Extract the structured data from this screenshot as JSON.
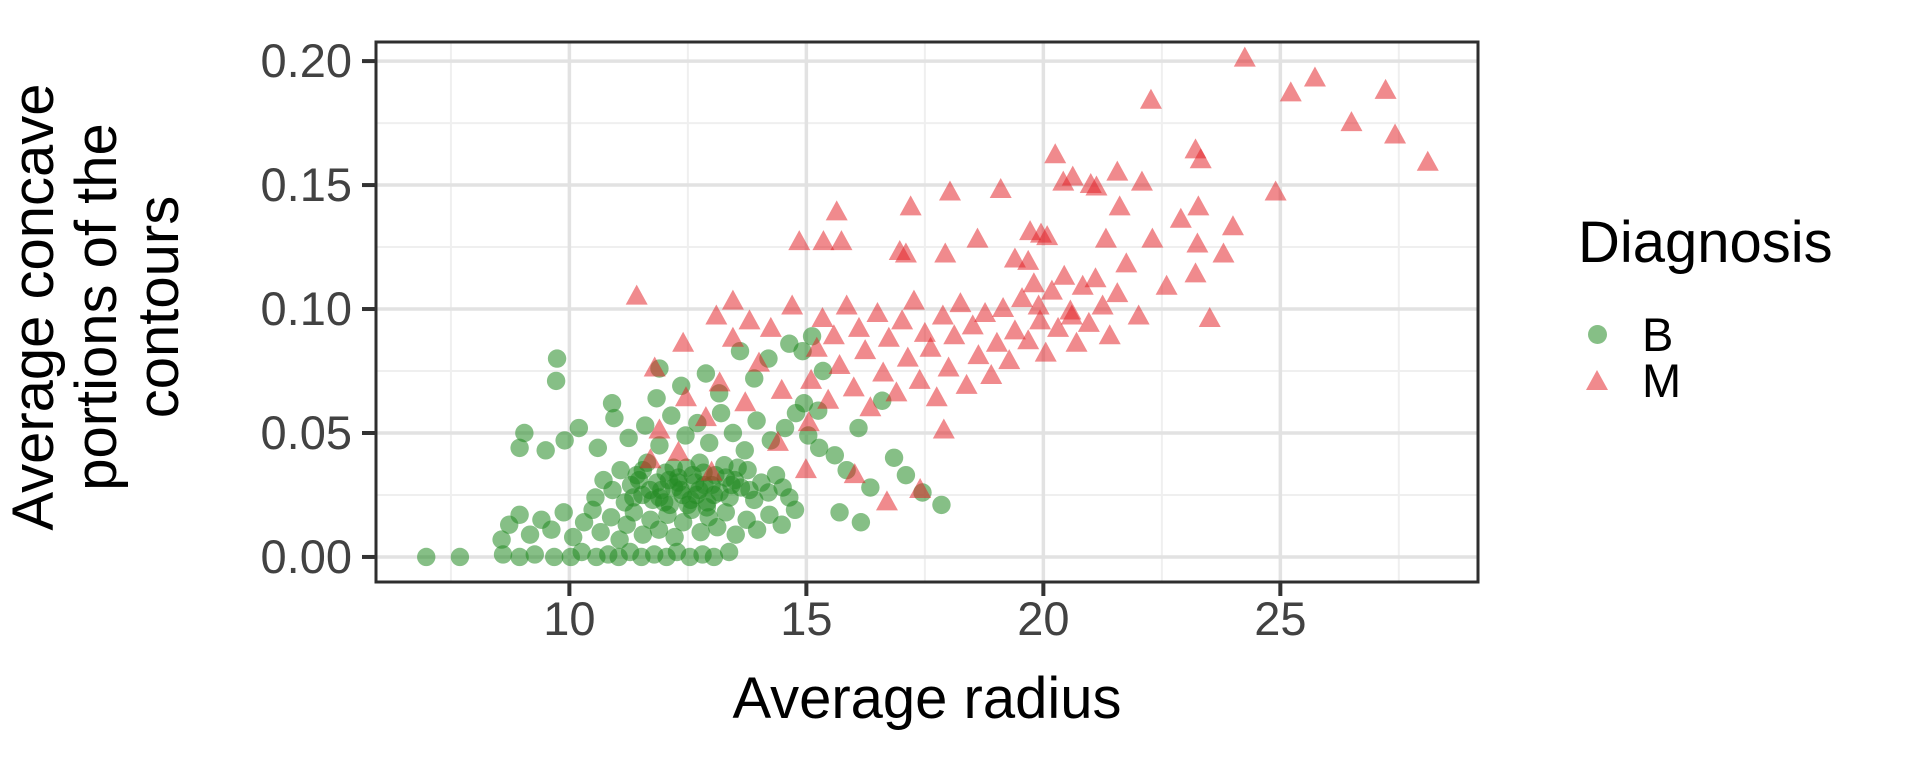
{
  "axes": {
    "x_title": "Average radius",
    "y_title": "Average concave\nportions of the\ncontours"
  },
  "legend": {
    "title": "Diagnosis",
    "items": [
      {
        "label": "B",
        "marker": "circle"
      },
      {
        "label": "M",
        "marker": "triangle"
      }
    ]
  },
  "chart_data": {
    "type": "scatter",
    "title": "",
    "xlabel": "Average radius",
    "ylabel": "Average concave portions of the contours",
    "xlim": [
      5.92,
      29.17
    ],
    "ylim": [
      -0.0101,
      0.2077
    ],
    "x_ticks": [
      10,
      15,
      20,
      25
    ],
    "x_tick_labels": [
      "10",
      "15",
      "20",
      "25"
    ],
    "y_ticks": [
      0.0,
      0.05,
      0.1,
      0.15,
      0.2
    ],
    "y_tick_labels": [
      "0.00",
      "0.05",
      "0.10",
      "0.15",
      "0.20"
    ],
    "x_minor_ticks": [
      7.5,
      12.5,
      17.5,
      22.5,
      27.5
    ],
    "y_minor_ticks": [
      0.025,
      0.075,
      0.125,
      0.175
    ],
    "grid": true,
    "legend_title": "Diagnosis",
    "legend_position": "right",
    "panel_bg_color": "#FFFFFF",
    "grid_major_color": "#E2E2E2",
    "grid_minor_color": "#EFEFEF",
    "panel_border_color": "#2E2E2E",
    "tick_color": "#333333",
    "tick_label_color": "#424242",
    "series": [
      {
        "name": "B",
        "marker": "circle",
        "color": "#228B22",
        "opacity": 0.55,
        "points": [
          [
            6.98,
            0.0
          ],
          [
            7.69,
            0.0
          ],
          [
            8.6,
            0.001
          ],
          [
            8.95,
            0.0
          ],
          [
            9.27,
            0.001
          ],
          [
            9.68,
            0.0
          ],
          [
            10.03,
            0.0
          ],
          [
            10.26,
            0.002
          ],
          [
            10.57,
            0.0
          ],
          [
            10.82,
            0.001
          ],
          [
            11.04,
            0.0
          ],
          [
            11.28,
            0.002
          ],
          [
            11.52,
            0.0
          ],
          [
            11.79,
            0.001
          ],
          [
            12.05,
            0.0
          ],
          [
            12.27,
            0.002
          ],
          [
            12.54,
            0.0
          ],
          [
            12.81,
            0.001
          ],
          [
            13.05,
            0.0
          ],
          [
            13.37,
            0.002
          ],
          [
            8.57,
            0.007
          ],
          [
            8.73,
            0.013
          ],
          [
            8.95,
            0.017
          ],
          [
            9.17,
            0.009
          ],
          [
            9.41,
            0.015
          ],
          [
            9.62,
            0.011
          ],
          [
            9.88,
            0.018
          ],
          [
            10.08,
            0.008
          ],
          [
            10.31,
            0.014
          ],
          [
            10.49,
            0.019
          ],
          [
            10.66,
            0.01
          ],
          [
            10.88,
            0.016
          ],
          [
            11.06,
            0.007
          ],
          [
            11.21,
            0.013
          ],
          [
            11.36,
            0.018
          ],
          [
            11.55,
            0.009
          ],
          [
            11.71,
            0.015
          ],
          [
            11.89,
            0.011
          ],
          [
            12.07,
            0.017
          ],
          [
            12.22,
            0.008
          ],
          [
            12.4,
            0.014
          ],
          [
            12.58,
            0.019
          ],
          [
            12.77,
            0.01
          ],
          [
            12.94,
            0.016
          ],
          [
            13.12,
            0.012
          ],
          [
            13.3,
            0.018
          ],
          [
            13.51,
            0.009
          ],
          [
            13.74,
            0.015
          ],
          [
            13.96,
            0.011
          ],
          [
            14.22,
            0.017
          ],
          [
            14.48,
            0.013
          ],
          [
            14.76,
            0.019
          ],
          [
            10.55,
            0.024
          ],
          [
            10.72,
            0.031
          ],
          [
            10.91,
            0.027
          ],
          [
            11.08,
            0.035
          ],
          [
            11.17,
            0.022
          ],
          [
            11.3,
            0.029
          ],
          [
            11.42,
            0.033
          ],
          [
            11.54,
            0.025
          ],
          [
            11.64,
            0.038
          ],
          [
            11.76,
            0.023
          ],
          [
            11.85,
            0.03
          ],
          [
            11.94,
            0.027
          ],
          [
            12.03,
            0.034
          ],
          [
            12.12,
            0.021
          ],
          [
            12.21,
            0.028
          ],
          [
            12.3,
            0.032
          ],
          [
            12.39,
            0.025
          ],
          [
            12.47,
            0.036
          ],
          [
            12.56,
            0.023
          ],
          [
            12.65,
            0.03
          ],
          [
            12.74,
            0.027
          ],
          [
            12.83,
            0.034
          ],
          [
            12.91,
            0.022
          ],
          [
            13.0,
            0.029
          ],
          [
            13.08,
            0.033
          ],
          [
            13.17,
            0.026
          ],
          [
            13.27,
            0.037
          ],
          [
            13.38,
            0.024
          ],
          [
            13.49,
            0.031
          ],
          [
            13.62,
            0.028
          ],
          [
            13.76,
            0.035
          ],
          [
            13.9,
            0.023
          ],
          [
            14.05,
            0.03
          ],
          [
            14.2,
            0.026
          ],
          [
            14.36,
            0.033
          ],
          [
            14.5,
            0.028
          ],
          [
            14.64,
            0.024
          ],
          [
            11.47,
            0.031
          ],
          [
            11.9,
            0.024
          ],
          [
            12.1,
            0.031
          ],
          [
            12.35,
            0.027
          ],
          [
            12.6,
            0.033
          ],
          [
            12.85,
            0.029
          ],
          [
            13.05,
            0.025
          ],
          [
            13.3,
            0.032
          ],
          [
            12.2,
            0.036
          ],
          [
            12.5,
            0.021
          ],
          [
            12.75,
            0.038
          ],
          [
            11.7,
            0.027
          ],
          [
            12.0,
            0.022
          ],
          [
            13.55,
            0.036
          ],
          [
            13.8,
            0.027
          ],
          [
            12.9,
            0.02
          ],
          [
            12.3,
            0.03
          ],
          [
            11.55,
            0.035
          ],
          [
            11.35,
            0.024
          ],
          [
            12.68,
            0.025
          ],
          [
            13.42,
            0.029
          ],
          [
            9.5,
            0.043
          ],
          [
            9.9,
            0.047
          ],
          [
            10.2,
            0.052
          ],
          [
            10.6,
            0.044
          ],
          [
            10.95,
            0.056
          ],
          [
            11.25,
            0.048
          ],
          [
            11.6,
            0.053
          ],
          [
            11.9,
            0.045
          ],
          [
            12.15,
            0.057
          ],
          [
            12.45,
            0.049
          ],
          [
            12.7,
            0.054
          ],
          [
            12.95,
            0.046
          ],
          [
            13.2,
            0.058
          ],
          [
            13.45,
            0.05
          ],
          [
            13.7,
            0.043
          ],
          [
            13.95,
            0.055
          ],
          [
            14.25,
            0.047
          ],
          [
            14.55,
            0.052
          ],
          [
            14.78,
            0.058
          ],
          [
            15.04,
            0.049
          ],
          [
            15.27,
            0.044
          ],
          [
            8.95,
            0.044
          ],
          [
            9.05,
            0.05
          ],
          [
            9.72,
            0.071
          ],
          [
            9.74,
            0.08
          ],
          [
            10.9,
            0.062
          ],
          [
            11.84,
            0.064
          ],
          [
            11.9,
            0.076
          ],
          [
            12.36,
            0.069
          ],
          [
            12.88,
            0.074
          ],
          [
            13.16,
            0.066
          ],
          [
            13.6,
            0.083
          ],
          [
            13.9,
            0.072
          ],
          [
            14.2,
            0.08
          ],
          [
            14.64,
            0.086
          ],
          [
            14.92,
            0.083
          ],
          [
            15.12,
            0.089
          ],
          [
            15.35,
            0.075
          ],
          [
            14.95,
            0.062
          ],
          [
            15.25,
            0.059
          ],
          [
            15.6,
            0.041
          ],
          [
            15.85,
            0.035
          ],
          [
            16.1,
            0.052
          ],
          [
            16.35,
            0.028
          ],
          [
            16.6,
            0.063
          ],
          [
            16.85,
            0.04
          ],
          [
            17.1,
            0.033
          ],
          [
            17.45,
            0.026
          ],
          [
            17.85,
            0.021
          ],
          [
            16.15,
            0.014
          ],
          [
            15.7,
            0.018
          ]
        ]
      },
      {
        "name": "M",
        "marker": "triangle",
        "color": "#E31E24",
        "opacity": 0.52,
        "points": [
          [
            11.42,
            0.105
          ],
          [
            11.71,
            0.039
          ],
          [
            11.9,
            0.051
          ],
          [
            11.8,
            0.076
          ],
          [
            12.46,
            0.064
          ],
          [
            12.88,
            0.056
          ],
          [
            13.17,
            0.07
          ],
          [
            13.45,
            0.088
          ],
          [
            13.71,
            0.062
          ],
          [
            14.0,
            0.078
          ],
          [
            14.25,
            0.092
          ],
          [
            14.48,
            0.067
          ],
          [
            12.3,
            0.042
          ],
          [
            13.0,
            0.034
          ],
          [
            14.4,
            0.046
          ],
          [
            15.05,
            0.054
          ],
          [
            16.02,
            0.033
          ],
          [
            16.7,
            0.022
          ],
          [
            17.4,
            0.027
          ],
          [
            17.9,
            0.051
          ],
          [
            14.99,
            0.035
          ],
          [
            13.1,
            0.097
          ],
          [
            13.8,
            0.095
          ],
          [
            12.4,
            0.086
          ],
          [
            14.7,
            0.101
          ],
          [
            13.45,
            0.103
          ],
          [
            15.1,
            0.071
          ],
          [
            15.22,
            0.084
          ],
          [
            15.34,
            0.096
          ],
          [
            15.46,
            0.063
          ],
          [
            15.58,
            0.089
          ],
          [
            15.7,
            0.077
          ],
          [
            15.85,
            0.101
          ],
          [
            16.0,
            0.068
          ],
          [
            16.11,
            0.092
          ],
          [
            16.24,
            0.083
          ],
          [
            16.35,
            0.06
          ],
          [
            16.5,
            0.098
          ],
          [
            16.62,
            0.074
          ],
          [
            16.74,
            0.088
          ],
          [
            16.9,
            0.066
          ],
          [
            17.02,
            0.095
          ],
          [
            17.14,
            0.08
          ],
          [
            17.27,
            0.103
          ],
          [
            17.39,
            0.071
          ],
          [
            17.5,
            0.09
          ],
          [
            17.62,
            0.084
          ],
          [
            17.75,
            0.064
          ],
          [
            17.88,
            0.097
          ],
          [
            18.0,
            0.076
          ],
          [
            18.12,
            0.089
          ],
          [
            18.25,
            0.102
          ],
          [
            18.38,
            0.069
          ],
          [
            18.51,
            0.093
          ],
          [
            18.63,
            0.081
          ],
          [
            18.77,
            0.098
          ],
          [
            18.9,
            0.073
          ],
          [
            19.02,
            0.086
          ],
          [
            19.15,
            0.1
          ],
          [
            19.28,
            0.079
          ],
          [
            19.4,
            0.091
          ],
          [
            19.55,
            0.104
          ],
          [
            19.68,
            0.087
          ],
          [
            19.8,
            0.11
          ],
          [
            19.93,
            0.095
          ],
          [
            20.05,
            0.082
          ],
          [
            20.18,
            0.107
          ],
          [
            20.31,
            0.092
          ],
          [
            20.44,
            0.113
          ],
          [
            20.57,
            0.099
          ],
          [
            20.7,
            0.086
          ],
          [
            20.83,
            0.109
          ],
          [
            20.96,
            0.094
          ],
          [
            21.1,
            0.112
          ],
          [
            21.25,
            0.101
          ],
          [
            21.4,
            0.089
          ],
          [
            21.56,
            0.106
          ],
          [
            20.6,
            0.097
          ],
          [
            19.9,
            0.101
          ],
          [
            21.75,
            0.118
          ],
          [
            22.01,
            0.097
          ],
          [
            22.3,
            0.128
          ],
          [
            22.6,
            0.109
          ],
          [
            22.9,
            0.136
          ],
          [
            23.21,
            0.114
          ],
          [
            23.51,
            0.096
          ],
          [
            23.27,
            0.141
          ],
          [
            24.0,
            0.133
          ],
          [
            23.8,
            0.122
          ],
          [
            14.85,
            0.127
          ],
          [
            15.36,
            0.127
          ],
          [
            15.64,
            0.139
          ],
          [
            15.74,
            0.127
          ],
          [
            16.97,
            0.123
          ],
          [
            17.1,
            0.122
          ],
          [
            17.2,
            0.141
          ],
          [
            17.93,
            0.122
          ],
          [
            18.03,
            0.147
          ],
          [
            18.61,
            0.128
          ],
          [
            19.1,
            0.148
          ],
          [
            19.4,
            0.12
          ],
          [
            19.68,
            0.119
          ],
          [
            19.72,
            0.131
          ],
          [
            19.95,
            0.13
          ],
          [
            20.08,
            0.129
          ],
          [
            20.42,
            0.151
          ],
          [
            20.62,
            0.153
          ],
          [
            21.0,
            0.15
          ],
          [
            21.12,
            0.149
          ],
          [
            21.32,
            0.128
          ],
          [
            21.56,
            0.155
          ],
          [
            21.61,
            0.141
          ],
          [
            22.08,
            0.151
          ],
          [
            23.25,
            0.126
          ],
          [
            20.25,
            0.162
          ],
          [
            22.27,
            0.184
          ],
          [
            23.21,
            0.164
          ],
          [
            24.25,
            0.201
          ],
          [
            25.22,
            0.187
          ],
          [
            25.73,
            0.193
          ],
          [
            27.22,
            0.188
          ],
          [
            27.42,
            0.17
          ],
          [
            28.11,
            0.159
          ],
          [
            23.32,
            0.16
          ],
          [
            26.5,
            0.175
          ],
          [
            24.9,
            0.147
          ]
        ]
      }
    ]
  }
}
